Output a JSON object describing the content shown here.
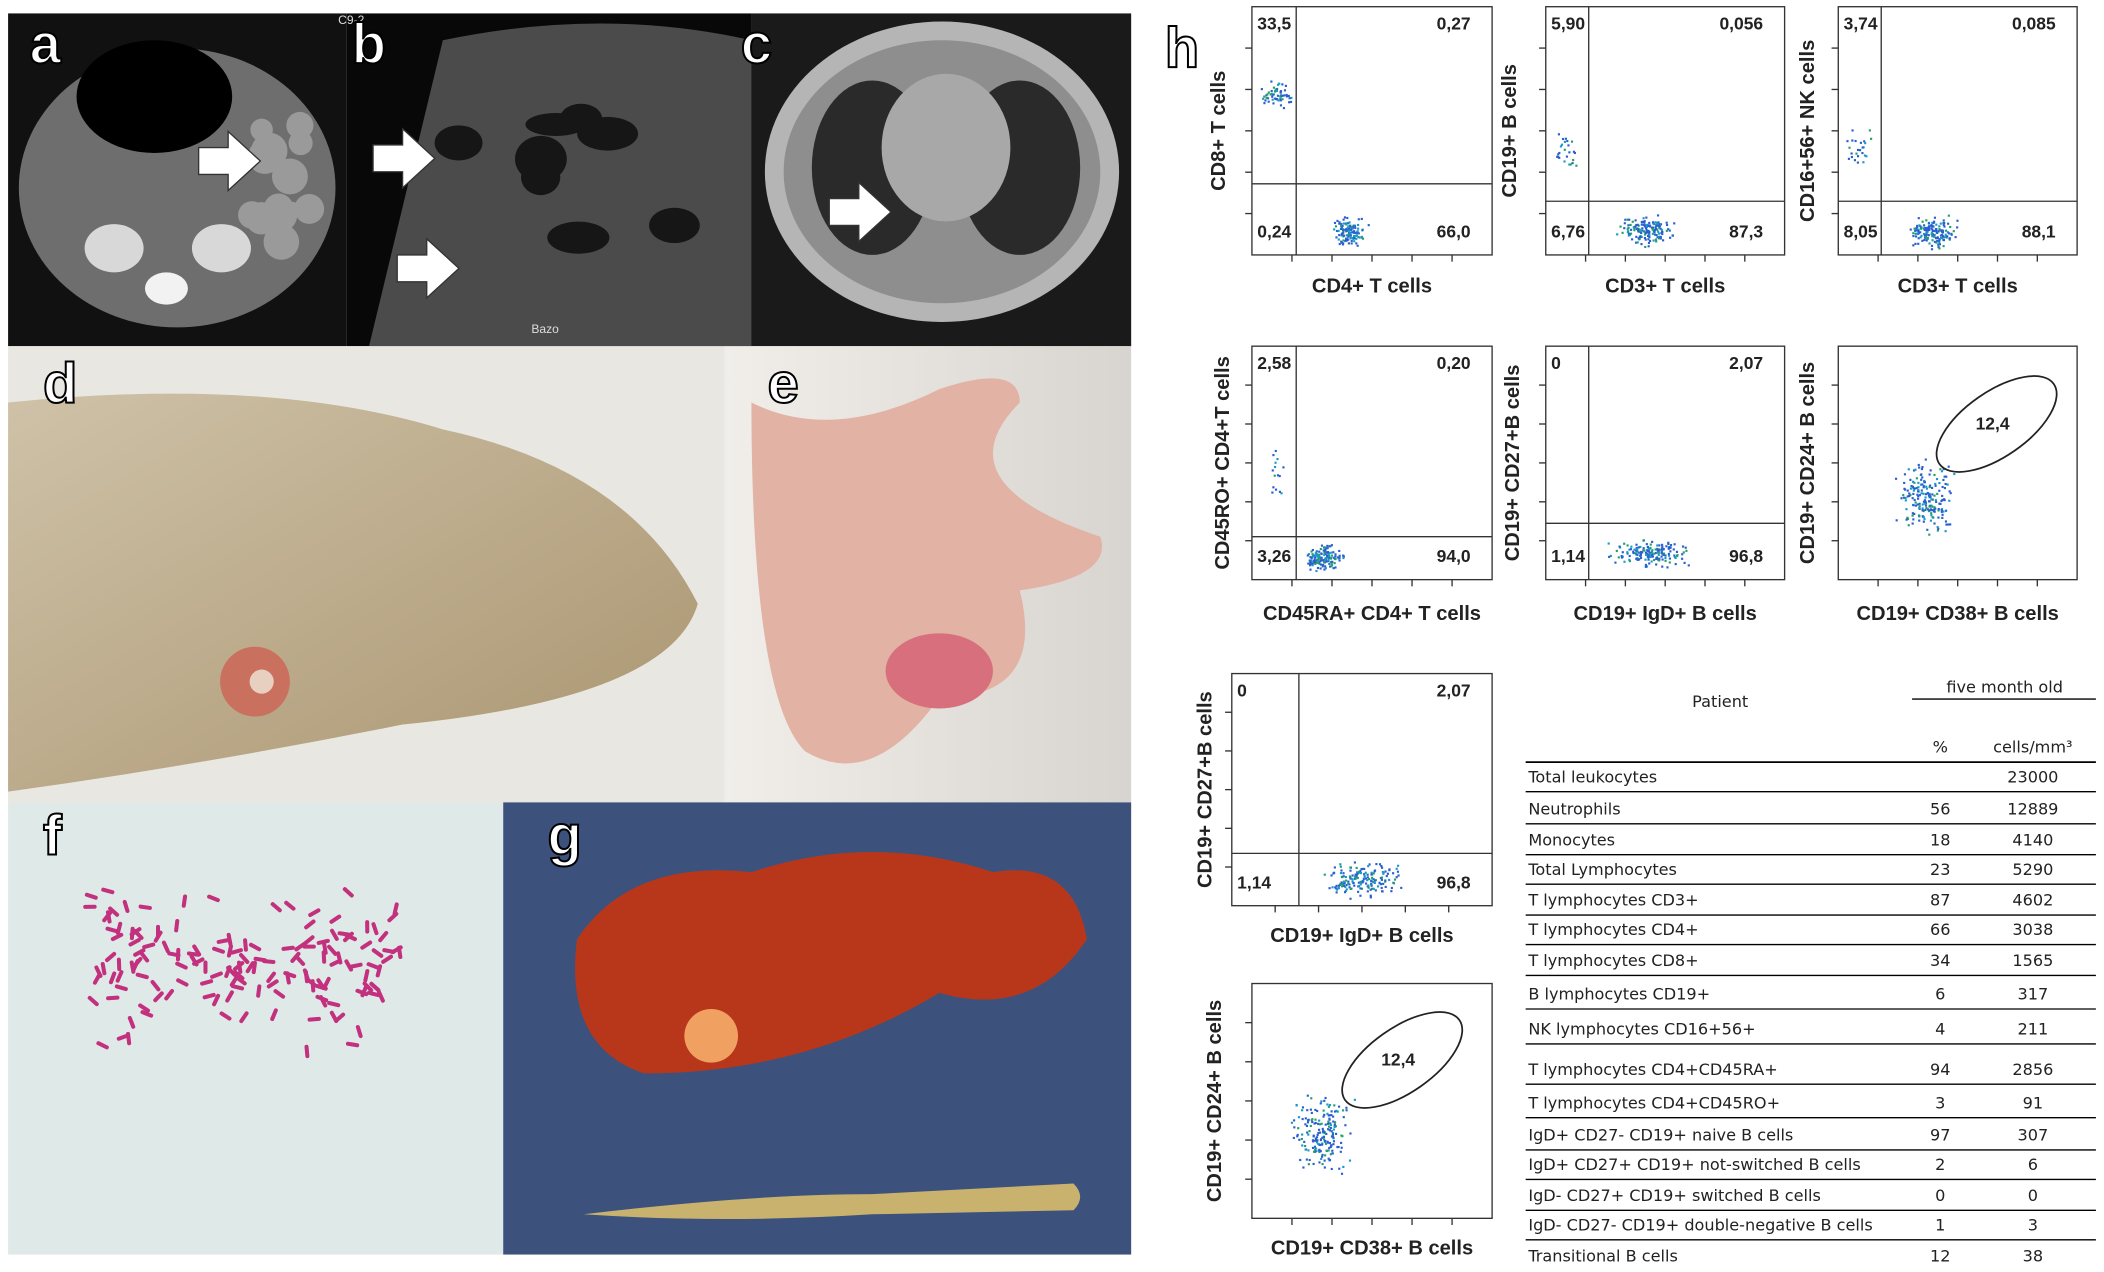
{
  "panels": [
    "a",
    "b",
    "c",
    "d",
    "e",
    "f",
    "g",
    "h"
  ],
  "ultrasound_text": [
    "C9-2",
    "Bazo"
  ],
  "flow_plots": [
    {
      "x_label": "CD4+ T cells",
      "y_label": "CD8+ T cells",
      "quadrants": [
        "33,5",
        "0,27",
        "0,24",
        "66,0"
      ]
    },
    {
      "x_label": "CD3+ T cells",
      "y_label": "CD19+ B cells",
      "quadrants": [
        "5,90",
        "0,056",
        "6,76",
        "87,3"
      ]
    },
    {
      "x_label": "CD3+ T cells",
      "y_label": "CD16+56+ NK cells",
      "quadrants": [
        "3,74",
        "0,085",
        "8,05",
        "88,1"
      ]
    },
    {
      "x_label": "CD45RA+ CD4+ T cells",
      "y_label": "CD45RO+ CD4+T cells",
      "quadrants": [
        "2,58",
        "0,20",
        "3,26",
        "94,0"
      ]
    },
    {
      "x_label": "CD19+ IgD+ B cells",
      "y_label": "CD19+ CD27+B cells",
      "quadrants": [
        "0",
        "2,07",
        "1,14",
        "96,8"
      ]
    },
    {
      "x_label": "CD19+ CD38+ B cells",
      "y_label": "CD19+ CD24+ B cells",
      "gate": "12,4"
    },
    {
      "x_label": "CD19+ IgD+ B cells",
      "y_label": "CD19+ CD27+B cells",
      "quadrants": [
        "0",
        "2,07",
        "1,14",
        "96,8"
      ]
    },
    {
      "x_label": "CD19+ CD38+ B cells",
      "y_label": "CD19+ CD24+ B cells",
      "gate": "12,4"
    }
  ],
  "table": {
    "title": "Patient",
    "group": "five month old",
    "columns": [
      "%",
      "cells/mm³"
    ],
    "rows": [
      [
        "Total leukocytes",
        null,
        23000
      ],
      [
        "Neutrophils",
        56,
        12889
      ],
      [
        "Monocytes",
        18,
        4140
      ],
      [
        "Total Lymphocytes",
        23,
        5290
      ],
      [
        "T lymphocytes CD3+",
        87,
        4602
      ],
      [
        "T lymphocytes CD4+",
        66,
        3038
      ],
      [
        "T lymphocytes CD8+",
        34,
        1565
      ],
      [
        "B lymphocytes CD19+",
        6,
        317
      ],
      [
        "NK lymphocytes CD16+56+",
        4,
        211
      ],
      [
        "T lymphocytes CD4+CD45RA+",
        94,
        2856
      ],
      [
        "T lymphocytes CD4+CD45RO+",
        3,
        91
      ],
      [
        "IgD+ CD27- CD19+ naive B cells",
        97,
        307
      ],
      [
        "IgD+ CD27+ CD19+ not-switched B cells",
        2,
        6
      ],
      [
        "IgD- CD27+ CD19+ switched B cells",
        0,
        0
      ],
      [
        "IgD- CD27- CD19+  double-negative B cells",
        1,
        3
      ],
      [
        "Transitional B cells",
        12,
        38
      ]
    ]
  }
}
